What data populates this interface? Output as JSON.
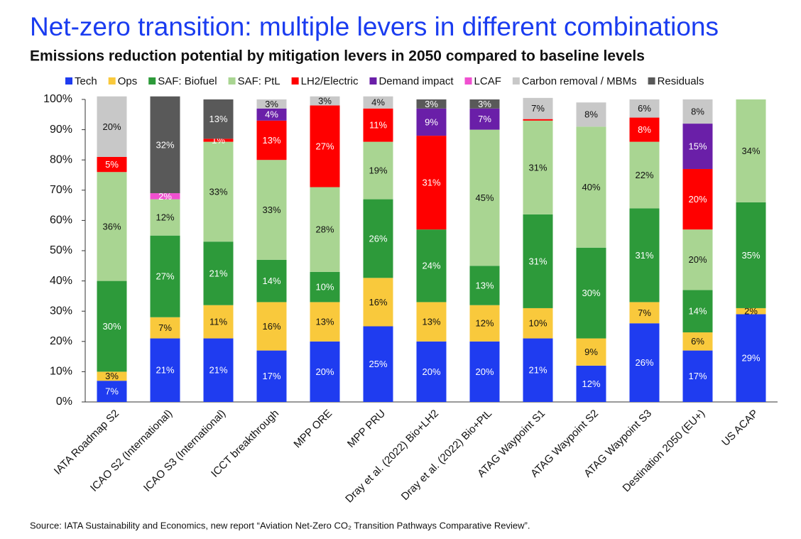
{
  "chart_data": {
    "type": "stacked_bar",
    "title": "Net-zero transition: multiple levers in different combinations",
    "subtitle": "Emissions reduction potential by mitigation levers in 2050 compared to baseline levels",
    "source": "Source: IATA Sustainability and Economics, new report “Aviation Net-Zero CO₂ Transition Pathways Comparative Review”.",
    "categories": [
      "IATA Roadmap S2",
      "ICAO S2 (International)",
      "ICAO S3 (International)",
      "ICCT breakthrough",
      "MPP ORE",
      "MPP PRU",
      "Dray et al. (2022) Bio+LH2",
      "Dray et al. (2022) Bio+PtL",
      "ATAG Waypoint S1",
      "ATAG Waypoint S2",
      "ATAG Waypoint S3",
      "Destination 2050 (EU+)",
      "US ACAP"
    ],
    "series": [
      {
        "name": "Tech",
        "color": "#1f3cf0",
        "values": [
          7,
          21,
          21,
          17,
          20,
          25,
          20,
          20,
          21,
          12,
          26,
          17,
          29
        ],
        "value_labels": [
          "7%",
          "21%",
          "21%",
          "17%",
          "20%",
          "25%",
          "20%",
          "20%",
          "21%",
          "12%",
          "26%",
          "17%",
          "29%"
        ]
      },
      {
        "name": "Ops",
        "color": "#f9c93c",
        "values": [
          3,
          7,
          11,
          16,
          13,
          16,
          13,
          12,
          10,
          9,
          7,
          6,
          2
        ],
        "value_labels": [
          "3%",
          "7%",
          "11%",
          "16%",
          "13%",
          "16%",
          "13%",
          "12%",
          "10%",
          "9%",
          "7%",
          "6%",
          "2%"
        ]
      },
      {
        "name": "SAF: Biofuel",
        "color": "#2d9a3a",
        "values": [
          30,
          27,
          21,
          14,
          10,
          26,
          24,
          13,
          31,
          30,
          31,
          14,
          35
        ],
        "value_labels": [
          "30%",
          "27%",
          "21%",
          "14%",
          "10%",
          "26%",
          "24%",
          "13%",
          "31%",
          "30%",
          "31%",
          "14%",
          "35%"
        ]
      },
      {
        "name": "SAF: PtL",
        "color": "#a9d592",
        "values": [
          36,
          12,
          33,
          33,
          28,
          19,
          0,
          45,
          31,
          40,
          22,
          20,
          34
        ],
        "value_labels": [
          "36%",
          "12%",
          "33%",
          "33%",
          "28%",
          "19%",
          null,
          "45%",
          "31%",
          "40%",
          "22%",
          "20%",
          "34%"
        ]
      },
      {
        "name": "LH2/Electric",
        "color": "#ff0000",
        "values": [
          5,
          0,
          1,
          13,
          27,
          11,
          31,
          0,
          0.5,
          0,
          8,
          20,
          0
        ],
        "value_labels": [
          "5%",
          null,
          "1%",
          "13%",
          "27%",
          "11%",
          "31%",
          null,
          null,
          null,
          "8%",
          "20%",
          null
        ]
      },
      {
        "name": "Demand impact",
        "color": "#6a1fa8",
        "values": [
          0,
          0,
          0,
          4,
          0,
          0,
          9,
          7,
          0,
          0,
          0,
          15,
          0
        ],
        "value_labels": [
          null,
          null,
          null,
          "4%",
          null,
          null,
          "9%",
          "7%",
          null,
          null,
          null,
          "15%",
          null
        ]
      },
      {
        "name": "LCAF",
        "color": "#f050d0",
        "values": [
          0,
          2,
          0,
          0,
          0,
          0,
          0,
          0,
          0,
          0,
          0,
          0,
          0
        ],
        "value_labels": [
          null,
          "2%",
          null,
          null,
          null,
          null,
          null,
          null,
          null,
          null,
          null,
          null,
          null
        ]
      },
      {
        "name": "Carbon removal / MBMs",
        "color": "#c8c8c8",
        "values": [
          20,
          0,
          0,
          3,
          3,
          4,
          0,
          0,
          7,
          8,
          6,
          8,
          0
        ],
        "value_labels": [
          "20%",
          null,
          null,
          "3%",
          "3%",
          "4%",
          null,
          null,
          "7%",
          "8%",
          "6%",
          "8%",
          null
        ]
      },
      {
        "name": "Residuals",
        "color": "#595959",
        "values": [
          0,
          32,
          13,
          0,
          0,
          0,
          3,
          3,
          0,
          0,
          0,
          0,
          0
        ],
        "value_labels": [
          null,
          "32%",
          "13%",
          null,
          null,
          null,
          "3%",
          "3%",
          null,
          null,
          null,
          null,
          null
        ]
      }
    ],
    "ylim": [
      0,
      100
    ],
    "yticks": [
      {
        "value": 0,
        "label": "0%"
      },
      {
        "value": 10,
        "label": "10%"
      },
      {
        "value": 20,
        "label": "20%"
      },
      {
        "value": 30,
        "label": "30%"
      },
      {
        "value": 40,
        "label": "40%"
      },
      {
        "value": 50,
        "label": "50%"
      },
      {
        "value": 60,
        "label": "60%"
      },
      {
        "value": 70,
        "label": "70%"
      },
      {
        "value": 80,
        "label": "80%"
      },
      {
        "value": 90,
        "label": "90%"
      },
      {
        "value": 100,
        "label": "100%"
      }
    ],
    "grid": false
  }
}
